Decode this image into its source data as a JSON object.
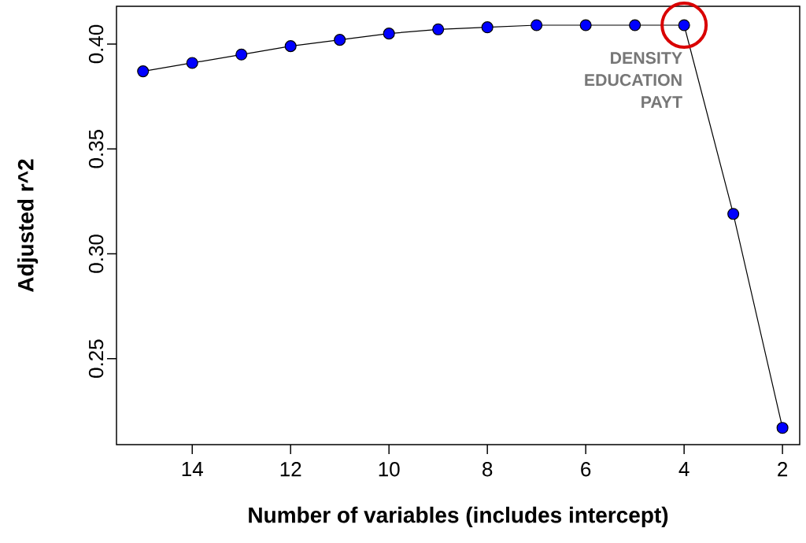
{
  "chart_data": {
    "type": "line",
    "xlabel": "Number of variables (includes intercept)",
    "ylabel": "Adjusted r^2",
    "x": [
      15,
      14,
      13,
      12,
      11,
      10,
      9,
      8,
      7,
      6,
      5,
      4,
      3,
      2
    ],
    "values": [
      0.387,
      0.391,
      0.395,
      0.399,
      0.402,
      0.405,
      0.407,
      0.408,
      0.409,
      0.409,
      0.409,
      0.409,
      0.319,
      0.217
    ],
    "color": "#0000ff",
    "marker": "circle",
    "line_style": "solid",
    "xlim": [
      15.54,
      1.65
    ],
    "ylim": [
      0.209,
      0.418
    ],
    "xticks": [
      14,
      12,
      10,
      8,
      6,
      4,
      2
    ],
    "yticks": [
      0.25,
      {
        "value": 0.3,
        "label": "0.30"
      },
      0.35,
      {
        "value": 0.4,
        "label": "0.40"
      }
    ],
    "annotations": [
      {
        "text": "DENSITY EDUCATION PAYT",
        "x": 4,
        "y": 0.409
      }
    ]
  }
}
